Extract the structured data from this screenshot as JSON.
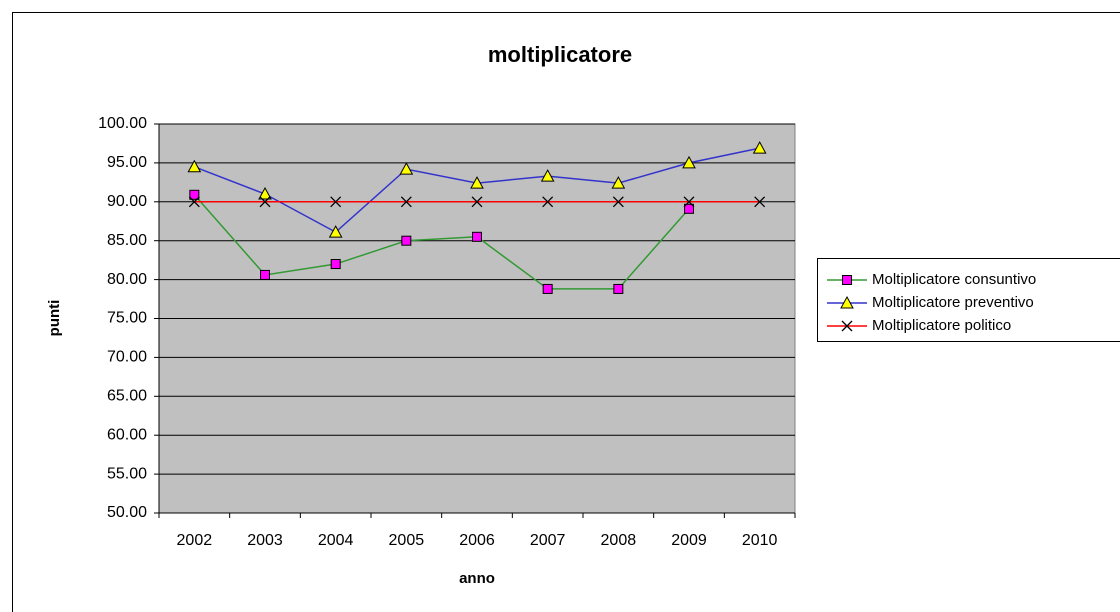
{
  "chart_data": {
    "type": "line",
    "title": "moltiplicatore",
    "x_label": "anno",
    "y_label": "punti",
    "categories": [
      "2002",
      "2003",
      "2004",
      "2005",
      "2006",
      "2007",
      "2008",
      "2009",
      "2010"
    ],
    "series": [
      {
        "name": "Moltiplicatore consuntivo",
        "color": "#339933",
        "marker": "square",
        "marker_color": "#ff00ff",
        "values": [
          90.9,
          80.6,
          82.0,
          85.0,
          85.5,
          78.8,
          78.8,
          89.1,
          null
        ]
      },
      {
        "name": "Moltiplicatore preventivo",
        "color": "#3333cc",
        "marker": "triangle",
        "marker_color": "#ffff00",
        "values": [
          94.5,
          91.0,
          86.1,
          94.2,
          92.4,
          93.3,
          92.4,
          95.0,
          96.9
        ]
      },
      {
        "name": "Moltiplicatore politico",
        "color": "#ff0000",
        "marker": "x",
        "marker_color": "#000000",
        "values": [
          90,
          90,
          90,
          90,
          90,
          90,
          90,
          90,
          90
        ]
      }
    ],
    "ylim": [
      50,
      100
    ],
    "yticks": [
      {
        "value": 50,
        "label": "50.00"
      },
      {
        "value": 55,
        "label": "55.00"
      },
      {
        "value": 60,
        "label": "60.00"
      },
      {
        "value": 65,
        "label": "65.00"
      },
      {
        "value": 70,
        "label": "70.00"
      },
      {
        "value": 75,
        "label": "75.00"
      },
      {
        "value": 80,
        "label": "80.00"
      },
      {
        "value": 85,
        "label": "85.00"
      },
      {
        "value": 90,
        "label": "90.00"
      },
      {
        "value": 95,
        "label": "95.00"
      },
      {
        "value": 100,
        "label": "100.00"
      }
    ],
    "grid": true,
    "plot_background": "#c0c0c0",
    "legend": "right"
  }
}
